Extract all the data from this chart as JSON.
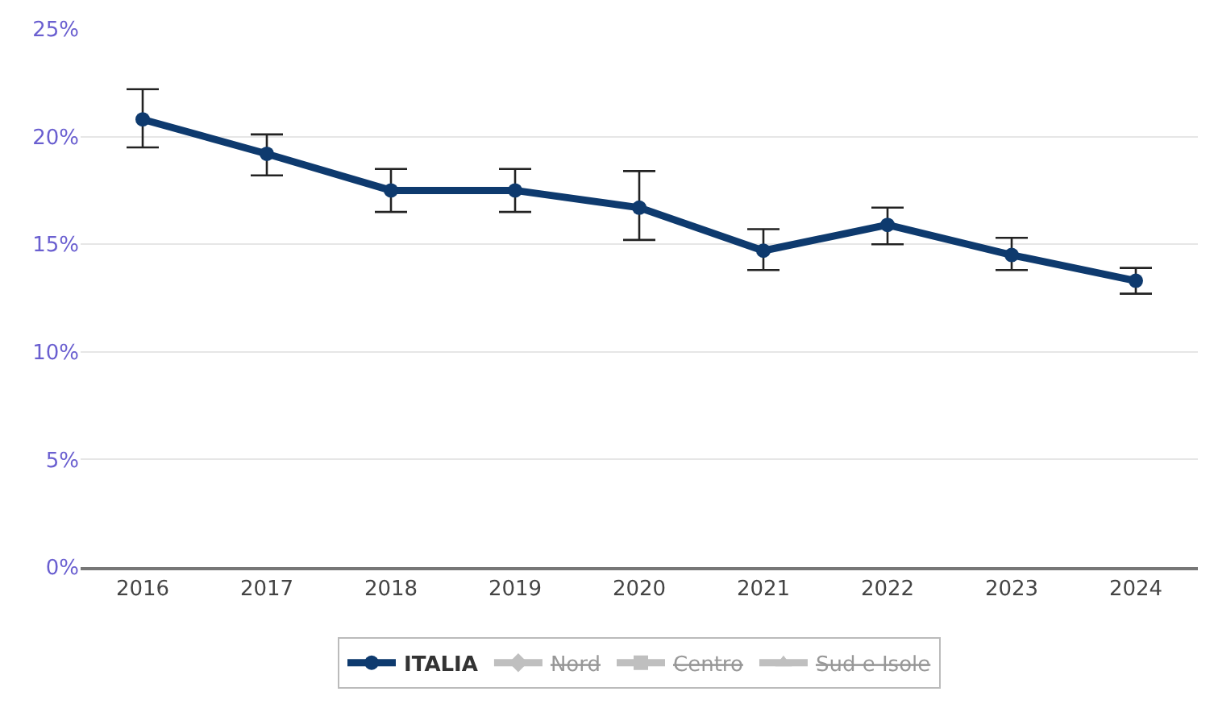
{
  "chart_data": {
    "type": "line",
    "categories": [
      "2016",
      "2017",
      "2018",
      "2019",
      "2020",
      "2021",
      "2022",
      "2023",
      "2024"
    ],
    "series": [
      {
        "name": "ITALIA",
        "color": "#0e3a6e",
        "marker": "circle",
        "values": [
          20.8,
          19.2,
          17.5,
          17.5,
          16.7,
          14.7,
          15.9,
          14.5,
          13.3
        ],
        "errors": [
          [
            19.5,
            22.2
          ],
          [
            18.2,
            20.1
          ],
          [
            16.5,
            18.5
          ],
          [
            16.5,
            18.5
          ],
          [
            15.2,
            18.4
          ],
          [
            13.8,
            15.7
          ],
          [
            15.0,
            16.7
          ],
          [
            13.8,
            15.3
          ],
          [
            12.7,
            13.9
          ]
        ]
      },
      {
        "name": "Nord",
        "color": "#808080",
        "marker": "diamond",
        "values": [
          null,
          null,
          null,
          null,
          null,
          null,
          null,
          null,
          null
        ]
      },
      {
        "name": "Centro",
        "color": "#808080",
        "marker": "square",
        "values": [
          null,
          null,
          null,
          null,
          null,
          null,
          null,
          null,
          null
        ]
      },
      {
        "name": "Sud e Isole",
        "color": "#808080",
        "marker": "triangle",
        "values": [
          null,
          null,
          null,
          null,
          null,
          null,
          null,
          null,
          null
        ]
      }
    ],
    "ylim": [
      0,
      25
    ],
    "yticks": [
      {
        "value": 0,
        "label": "0%"
      },
      {
        "value": 5,
        "label": "5%"
      },
      {
        "value": 10,
        "label": "10%"
      },
      {
        "value": 15,
        "label": "15%"
      },
      {
        "value": 20,
        "label": "20%"
      },
      {
        "value": 25,
        "label": "25%"
      }
    ],
    "grid": "y",
    "legend": "bottom",
    "line_style": "solid"
  }
}
